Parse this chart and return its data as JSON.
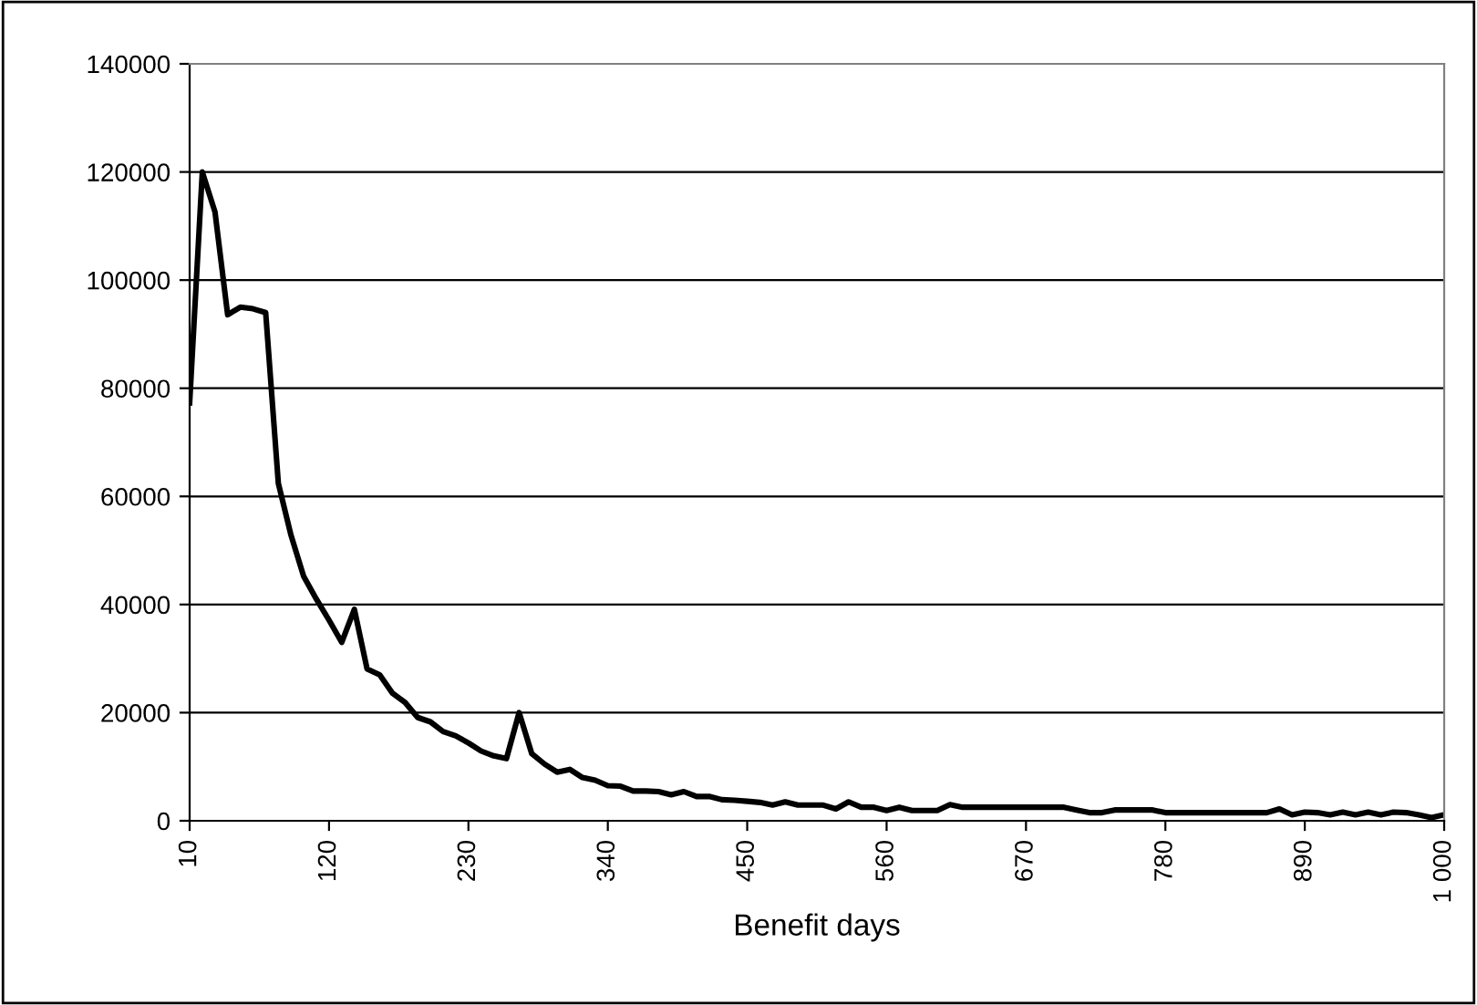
{
  "chart_data": {
    "type": "line",
    "xlabel": "Benefit days",
    "x": [
      10,
      20,
      30,
      40,
      50,
      60,
      70,
      80,
      90,
      100,
      110,
      120,
      130,
      140,
      150,
      160,
      170,
      180,
      190,
      200,
      210,
      220,
      230,
      240,
      250,
      260,
      270,
      280,
      290,
      300,
      310,
      320,
      330,
      340,
      350,
      360,
      370,
      380,
      390,
      400,
      410,
      420,
      430,
      440,
      450,
      460,
      470,
      480,
      490,
      500,
      510,
      520,
      530,
      540,
      550,
      560,
      570,
      580,
      590,
      600,
      610,
      620,
      630,
      640,
      650,
      660,
      670,
      680,
      690,
      700,
      710,
      720,
      730,
      740,
      750,
      760,
      770,
      780,
      790,
      800,
      810,
      820,
      830,
      840,
      850,
      860,
      870,
      880,
      890,
      900,
      910,
      920,
      930,
      940,
      950,
      960,
      970,
      980,
      990,
      1000
    ],
    "series": [
      {
        "color": "#000000",
        "values": [
          77300,
          120000,
          112600,
          93600,
          95000,
          94700,
          94000,
          62400,
          52800,
          45200,
          41000,
          37100,
          33000,
          39100,
          28100,
          27000,
          23600,
          21900,
          19100,
          18300,
          16500,
          15700,
          14400,
          12900,
          12000,
          11500,
          20000,
          12400,
          10500,
          9000,
          9500,
          8000,
          7500,
          6500,
          6400,
          5500,
          5500,
          5400,
          4800,
          5400,
          4500,
          4500,
          3900,
          3800,
          3600,
          3400,
          2900,
          3500,
          2900,
          2900,
          2900,
          2200,
          3500,
          2500,
          2500,
          1900,
          2500,
          1900,
          1900,
          1900,
          3000,
          2500,
          2500,
          2500,
          2500,
          2500,
          2500,
          2500,
          2500,
          2500,
          2000,
          1500,
          1500,
          2000,
          2000,
          2000,
          2000,
          1500,
          1500,
          1500,
          1500,
          1500,
          1500,
          1500,
          1500,
          1500,
          2200,
          1100,
          1600,
          1500,
          1100,
          1600,
          1100,
          1600,
          1100,
          1600,
          1500,
          1100,
          600,
          1100
        ]
      }
    ],
    "xlim": [
      10,
      1000
    ],
    "xticks": [
      10,
      120,
      230,
      340,
      450,
      560,
      670,
      780,
      890,
      {
        "value": 1000,
        "label": "1 000"
      }
    ],
    "ylim": [
      0,
      140000
    ],
    "yticks": [
      0,
      20000,
      40000,
      60000,
      80000,
      100000,
      120000,
      140000
    ],
    "grid": "y",
    "legend": false,
    "marker": "none",
    "line_style": "solid"
  }
}
